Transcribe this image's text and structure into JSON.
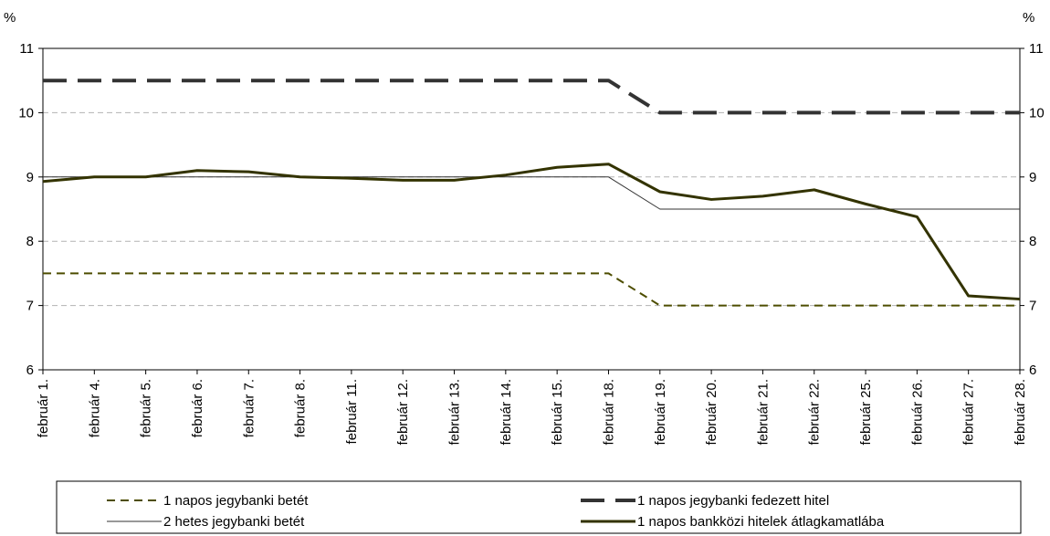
{
  "chart_data": {
    "type": "line",
    "y_unit_left": "%",
    "y_unit_right": "%",
    "ylim": [
      6,
      11
    ],
    "yticks": [
      6,
      7,
      8,
      9,
      10,
      11
    ],
    "grid": "horizontal dashed",
    "legend_position": "bottom",
    "categories": [
      "február 1.",
      "február 4.",
      "február 5.",
      "február 6.",
      "február 7.",
      "február 8.",
      "február 11.",
      "február 12.",
      "február 13.",
      "február 14.",
      "február 15.",
      "február 18.",
      "február 19.",
      "február 20.",
      "február 21.",
      "február 22.",
      "február 25.",
      "február 26.",
      "február 27.",
      "február 28."
    ],
    "series": [
      {
        "name": "1 napos jegybanki betét",
        "color": "#4d4d00",
        "style": "short-dash",
        "values": [
          7.5,
          7.5,
          7.5,
          7.5,
          7.5,
          7.5,
          7.5,
          7.5,
          7.5,
          7.5,
          7.5,
          7.5,
          7.0,
          7.0,
          7.0,
          7.0,
          7.0,
          7.0,
          7.0,
          7.0
        ]
      },
      {
        "name": "2 hetes jegybanki betét",
        "color": "#333333",
        "style": "thin",
        "values": [
          9.0,
          9.0,
          9.0,
          9.0,
          9.0,
          9.0,
          9.0,
          9.0,
          9.0,
          9.0,
          9.0,
          9.0,
          8.5,
          8.5,
          8.5,
          8.5,
          8.5,
          8.5,
          8.5,
          8.5
        ]
      },
      {
        "name": "1 napos jegybanki fedezett hitel",
        "color": "#333333",
        "style": "long-dash",
        "values": [
          10.5,
          10.5,
          10.5,
          10.5,
          10.5,
          10.5,
          10.5,
          10.5,
          10.5,
          10.5,
          10.5,
          10.5,
          10.0,
          10.0,
          10.0,
          10.0,
          10.0,
          10.0,
          10.0,
          10.0
        ]
      },
      {
        "name": "1 napos bankközi hitelek átlagkamatlába",
        "color": "#333300",
        "style": "thick",
        "values": [
          8.93,
          9.0,
          9.0,
          9.1,
          9.08,
          9.0,
          8.98,
          8.95,
          8.95,
          9.03,
          9.15,
          9.2,
          8.77,
          8.65,
          8.7,
          8.8,
          8.58,
          8.38,
          7.15,
          7.1
        ]
      }
    ]
  }
}
